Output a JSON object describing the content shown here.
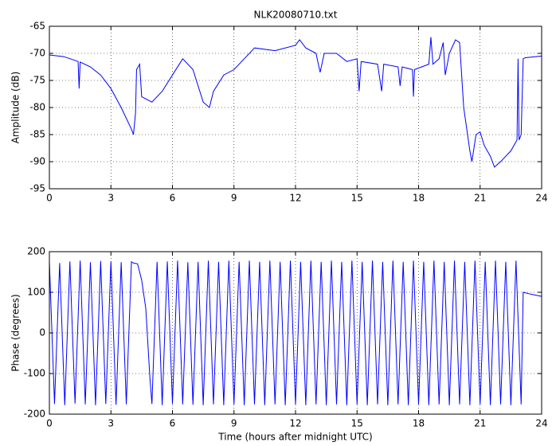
{
  "chart_data": [
    {
      "type": "line",
      "title": "NLK20080710.txt",
      "ylabel": "Amplitude (dB)",
      "x": [
        0,
        0.7,
        1.4,
        1.45,
        1.5,
        2,
        2.5,
        3,
        3.5,
        4,
        4.1,
        4.2,
        4.25,
        4.4,
        4.5,
        5,
        5.5,
        6,
        6.5,
        7,
        7.5,
        7.8,
        8,
        8.5,
        9,
        9.5,
        10,
        11,
        12,
        12.2,
        12.5,
        13,
        13.2,
        13.4,
        14,
        14.5,
        15,
        15.1,
        15.2,
        16,
        16.2,
        16.3,
        17,
        17.1,
        17.2,
        17.7,
        17.75,
        17.8,
        18.5,
        18.6,
        18.7,
        19,
        19.2,
        19.3,
        19.5,
        19.8,
        20,
        20.2,
        20.5,
        20.6,
        20.8,
        21,
        21.2,
        21.5,
        21.7,
        22,
        22.5,
        22.8,
        22.85,
        22.9,
        23,
        23.1,
        23.2,
        24
      ],
      "values": [
        -70.3,
        -70.6,
        -71.5,
        -76.5,
        -71.6,
        -72.5,
        -74,
        -76.5,
        -80,
        -84,
        -85,
        -81,
        -73,
        -72,
        -78,
        -79,
        -77,
        -74,
        -71,
        -73,
        -79,
        -80,
        -77,
        -74,
        -73,
        -71,
        -69,
        -69.5,
        -68.5,
        -67.5,
        -69,
        -70,
        -73.5,
        -70,
        -70,
        -71.5,
        -71,
        -77,
        -71.5,
        -72,
        -77,
        -72,
        -72.5,
        -76,
        -72.5,
        -73,
        -78,
        -73,
        -72,
        -67,
        -72,
        -71,
        -68,
        -74,
        -70,
        -67.5,
        -68,
        -80,
        -88,
        -90,
        -85,
        -84.5,
        -87,
        -89,
        -91,
        -90,
        -88,
        -86,
        -71,
        -86,
        -85,
        -71,
        -70.8,
        -70.5
      ],
      "color": "#0000ff",
      "xlim": [
        0,
        24
      ],
      "xticks": [
        0,
        3,
        6,
        9,
        12,
        15,
        18,
        21,
        24
      ],
      "ylim": [
        -95,
        -65
      ],
      "yticks": [
        -95,
        -90,
        -85,
        -80,
        -75,
        -70,
        -65
      ],
      "grid": true
    },
    {
      "type": "line",
      "ylabel": "Phase (degrees)",
      "xlabel": "Time (hours after midnight UTC)",
      "x": [
        0,
        0.25,
        0.5,
        0.75,
        1,
        1.25,
        1.5,
        1.75,
        2,
        2.25,
        2.5,
        2.75,
        3,
        3.25,
        3.5,
        3.75,
        4,
        4.1,
        4.3,
        4.5,
        4.7,
        4.9,
        5.0,
        5.25,
        5.5,
        5.75,
        6,
        6.25,
        6.5,
        6.75,
        7,
        7.25,
        7.5,
        7.75,
        8,
        8.25,
        8.5,
        8.75,
        9,
        9.25,
        9.5,
        9.75,
        10,
        10.25,
        10.5,
        10.75,
        11,
        11.25,
        11.5,
        11.75,
        12,
        12.25,
        12.5,
        12.75,
        13,
        13.25,
        13.5,
        13.75,
        14,
        14.25,
        14.5,
        14.75,
        15,
        15.25,
        15.5,
        15.75,
        16,
        16.25,
        16.5,
        16.75,
        17,
        17.25,
        17.5,
        17.75,
        18,
        18.25,
        18.5,
        18.75,
        19,
        19.25,
        19.5,
        19.75,
        20,
        20.25,
        20.5,
        20.75,
        21,
        21.25,
        21.5,
        21.75,
        22,
        22.25,
        22.5,
        22.75,
        23,
        23.1,
        23.5,
        24
      ],
      "values": [
        175,
        -175,
        172,
        -178,
        176,
        -174,
        178,
        -176,
        174,
        -178,
        177,
        -175,
        176,
        -177,
        174,
        -176,
        175,
        172,
        170,
        130,
        60,
        -110,
        -175,
        175,
        -178,
        176,
        -175,
        178,
        -176,
        174,
        -177,
        175,
        -178,
        178,
        -176,
        175,
        -178,
        178,
        -176,
        175,
        -178,
        178,
        -176,
        175,
        -178,
        178,
        -176,
        175,
        -178,
        178,
        -176,
        175,
        -178,
        178,
        -176,
        175,
        -178,
        178,
        -176,
        175,
        -178,
        178,
        -176,
        175,
        -178,
        178,
        -176,
        175,
        -178,
        178,
        -176,
        175,
        -178,
        178,
        -176,
        175,
        -178,
        178,
        -176,
        175,
        -178,
        178,
        -176,
        175,
        -178,
        178,
        -176,
        175,
        -178,
        178,
        -176,
        175,
        -178,
        178,
        -176,
        100,
        95,
        90
      ],
      "color": "#0000ff",
      "xlim": [
        0,
        24
      ],
      "xticks": [
        0,
        3,
        6,
        9,
        12,
        15,
        18,
        21,
        24
      ],
      "ylim": [
        -200,
        200
      ],
      "yticks": [
        -200,
        -100,
        0,
        100,
        200
      ],
      "grid": true
    }
  ]
}
